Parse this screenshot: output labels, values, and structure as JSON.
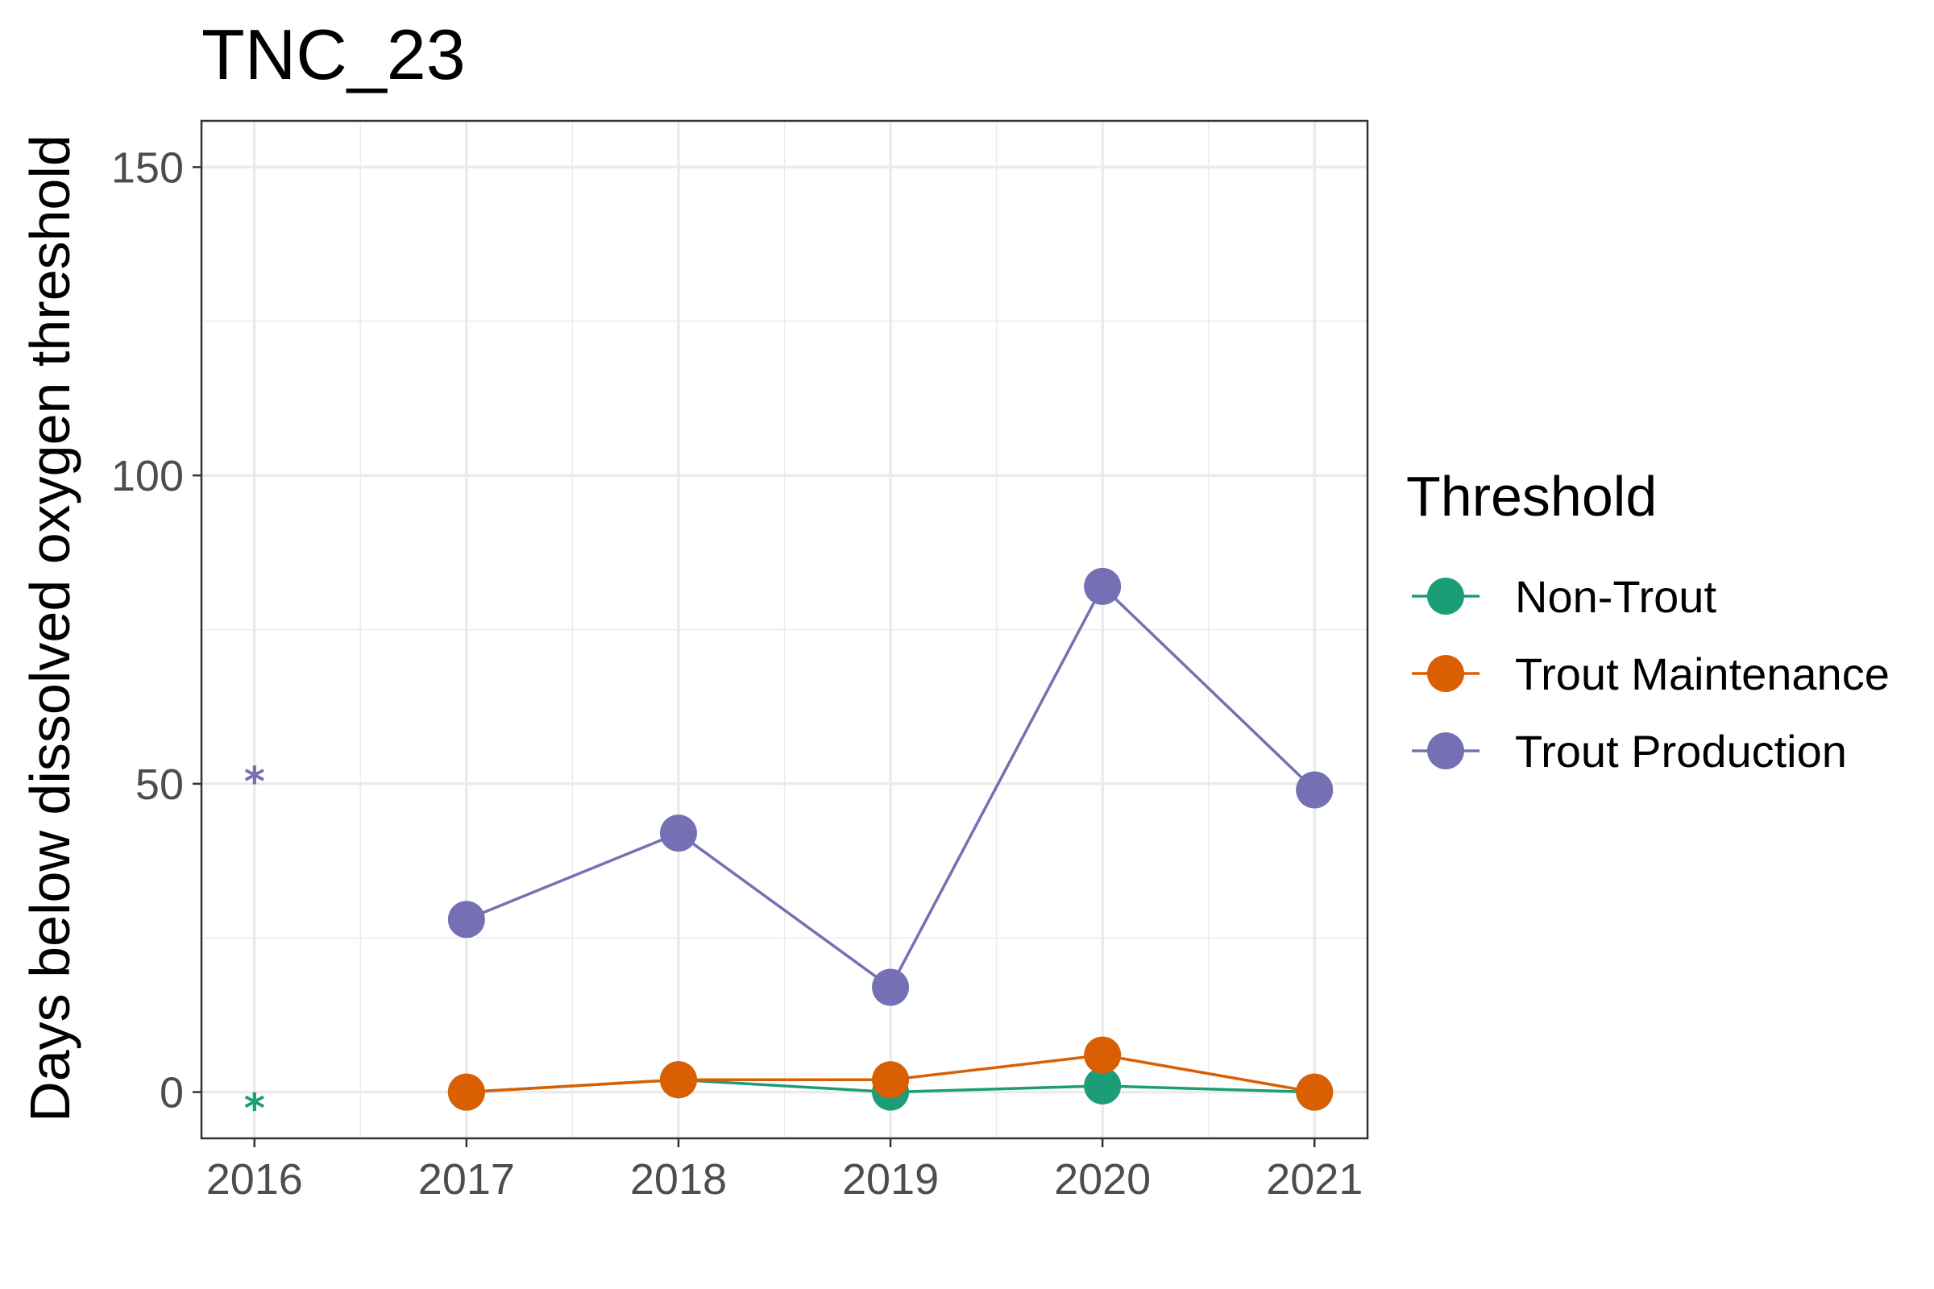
{
  "chart_data": {
    "type": "line",
    "title": "TNC_23",
    "xlabel": "",
    "ylabel": "Days below dissolved oxygen threshold",
    "x_ticks": [
      "2016",
      "2017",
      "2018",
      "2019",
      "2020",
      "2021"
    ],
    "y_ticks": [
      "0",
      "50",
      "100",
      "150"
    ],
    "xlim": [
      2015.75,
      2021.25
    ],
    "ylim": [
      -7.5,
      157.5
    ],
    "grid": true,
    "legend": {
      "title": "Threshold",
      "position": "right"
    },
    "series": [
      {
        "name": "Non-Trout",
        "color": "#1b9e77",
        "x": [
          2017,
          2018,
          2019,
          2020,
          2021
        ],
        "y": [
          0,
          2,
          0,
          1,
          0
        ]
      },
      {
        "name": "Trout Maintenance",
        "color": "#d95f02",
        "x": [
          2017,
          2018,
          2019,
          2020,
          2021
        ],
        "y": [
          0,
          2,
          2,
          6,
          0
        ]
      },
      {
        "name": "Trout Production",
        "color": "#7570b3",
        "x": [
          2017,
          2018,
          2019,
          2020,
          2021
        ],
        "y": [
          28,
          42,
          17,
          82,
          49
        ]
      }
    ],
    "annotations": [
      {
        "text": "*",
        "x": 2016,
        "y": 52,
        "series": "Trout Production",
        "color": "#7570b3"
      },
      {
        "text": "*",
        "x": 2016,
        "y": -1,
        "series": "Non-Trout",
        "color": "#1b9e77"
      }
    ]
  }
}
